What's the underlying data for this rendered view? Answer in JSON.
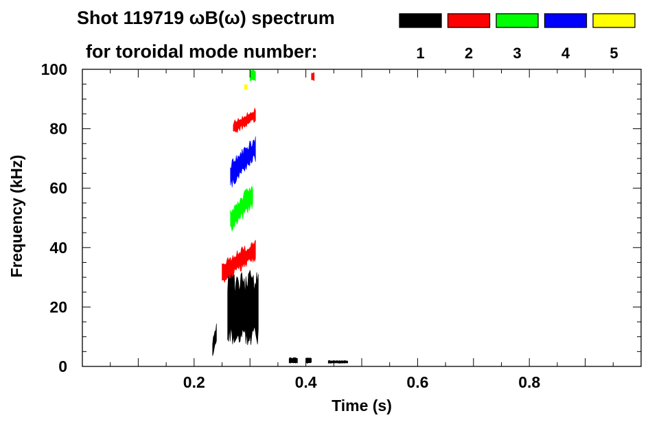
{
  "chart_data": {
    "type": "heatmap",
    "title_line1": "Shot 119719 ωB(ω) spectrum",
    "title_line2": "for toroidal mode number:",
    "xlabel": "Time (s)",
    "ylabel": "Frequency (kHz)",
    "xlim": [
      0.0,
      1.0
    ],
    "ylim": [
      0,
      100
    ],
    "x_ticks": [
      {
        "value": 0.2,
        "label": "0.2"
      },
      {
        "value": 0.4,
        "label": "0.4"
      },
      {
        "value": 0.6,
        "label": "0.6"
      },
      {
        "value": 0.8,
        "label": "0.8"
      }
    ],
    "y_ticks": [
      {
        "value": 0,
        "label": "0"
      },
      {
        "value": 20,
        "label": "20"
      },
      {
        "value": 40,
        "label": "40"
      },
      {
        "value": 60,
        "label": "60"
      },
      {
        "value": 80,
        "label": "80"
      },
      {
        "value": 100,
        "label": "100"
      }
    ],
    "legend": [
      {
        "n": "1",
        "color": "#000000"
      },
      {
        "n": "2",
        "color": "#ff0000"
      },
      {
        "n": "3",
        "color": "#00ff00"
      },
      {
        "n": "4",
        "color": "#0000ff"
      },
      {
        "n": "5",
        "color": "#ffff00"
      }
    ],
    "regions": [
      {
        "mode": 1,
        "t_start": 0.26,
        "t_end": 0.315,
        "f_low": 7,
        "f_high": 33,
        "note": "broad n=1 activity"
      },
      {
        "mode": 1,
        "t_start": 0.233,
        "t_end": 0.24,
        "f_low": 2,
        "f_high": 15
      },
      {
        "mode": 1,
        "t_start": 0.37,
        "t_end": 0.385,
        "f_low": 1,
        "f_high": 3
      },
      {
        "mode": 1,
        "t_start": 0.4,
        "t_end": 0.41,
        "f_low": 1,
        "f_high": 3
      },
      {
        "mode": 1,
        "t_start": 0.44,
        "t_end": 0.475,
        "f_low": 1,
        "f_high": 2
      },
      {
        "mode": 2,
        "t_start": 0.25,
        "t_end": 0.31,
        "f_low": 28,
        "f_high": 43,
        "note": "n=2 chirping up"
      },
      {
        "mode": 2,
        "t_start": 0.27,
        "t_end": 0.31,
        "f_low": 78,
        "f_high": 87
      },
      {
        "mode": 2,
        "t_start": 0.41,
        "t_end": 0.415,
        "f_low": 96,
        "f_high": 99
      },
      {
        "mode": 3,
        "t_start": 0.265,
        "t_end": 0.305,
        "f_low": 45,
        "f_high": 62,
        "note": "n=3 chirping up"
      },
      {
        "mode": 3,
        "t_start": 0.3,
        "t_end": 0.31,
        "f_low": 96,
        "f_high": 100
      },
      {
        "mode": 4,
        "t_start": 0.265,
        "t_end": 0.31,
        "f_low": 60,
        "f_high": 78,
        "note": "n=4 chirping up"
      },
      {
        "mode": 5,
        "t_start": 0.29,
        "t_end": 0.295,
        "f_low": 93,
        "f_high": 95
      }
    ]
  }
}
